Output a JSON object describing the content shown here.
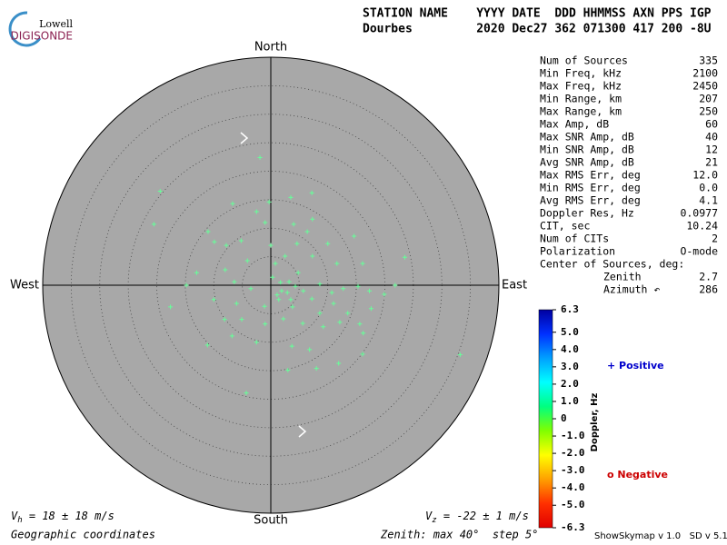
{
  "logo": {
    "top": "Lowell",
    "bottom": "DIGISONDE"
  },
  "header": {
    "line1": "STATION NAME    YYYY DATE  DDD HHMMSS AXN PPS IGP",
    "line2": "Dourbes         2020 Dec27 362 071300 417 200 -8U"
  },
  "stats": [
    {
      "label": "Num of Sources",
      "value": "335"
    },
    {
      "label": "Min Freq, kHz",
      "value": "2100"
    },
    {
      "label": "Max Freq, kHz",
      "value": "2450"
    },
    {
      "label": "Min Range, km",
      "value": "207"
    },
    {
      "label": "Max Range, km",
      "value": "250"
    },
    {
      "label": "Max Amp, dB",
      "value": "60"
    },
    {
      "label": "Max SNR Amp, dB",
      "value": "40"
    },
    {
      "label": "Min SNR Amp, dB",
      "value": "12"
    },
    {
      "label": "Avg SNR Amp, dB",
      "value": "21"
    },
    {
      "label": "Max RMS Err, deg",
      "value": "12.0"
    },
    {
      "label": "Min RMS Err, deg",
      "value": "0.0"
    },
    {
      "label": "Avg RMS Err, deg",
      "value": "4.1"
    },
    {
      "label": "Doppler Res, Hz",
      "value": "0.0977"
    },
    {
      "label": "CIT, sec",
      "value": "10.24"
    },
    {
      "label": "Num of CITs",
      "value": "2"
    },
    {
      "label": "Polarization",
      "value": "O-mode"
    }
  ],
  "center": {
    "title": "Center of Sources, deg:",
    "zenith_label": "Zenith",
    "zenith": "2.7",
    "azimuth_label": "Azimuth ↶",
    "azimuth": "286"
  },
  "colorbar": {
    "title": "Doppler, Hz",
    "lim": [
      -6.3,
      6.3
    ],
    "ticks": [
      6.3,
      {
        "value": 5,
        "label": "5.0"
      },
      {
        "value": 4,
        "label": "4.0"
      },
      {
        "value": 3,
        "label": "3.0"
      },
      {
        "value": 2,
        "label": "2.0"
      },
      {
        "value": 1,
        "label": "1.0"
      },
      0,
      {
        "value": -1,
        "label": "-1.0"
      },
      {
        "value": -2,
        "label": "-2.0"
      },
      {
        "value": -3,
        "label": "-3.0"
      },
      {
        "value": -4,
        "label": "-4.0"
      },
      {
        "value": -5,
        "label": "-5.0"
      },
      -6.3
    ],
    "colors": [
      "#0000a0",
      "#0030ff",
      "#00a0ff",
      "#00ffff",
      "#00ff80",
      "#80ff00",
      "#ffff00",
      "#ffa000",
      "#ff3000",
      "#e00000"
    ]
  },
  "legend": {
    "positive": "+ Positive",
    "positive_color": "#0000cc",
    "negative": "o Negative",
    "negative_color": "#cc0000"
  },
  "footer": {
    "vh_v": "V",
    "vh_sub": "h",
    "vh_text": " = 18 ± 18 m/s",
    "vz_v": "V",
    "vz_sub": "z",
    "vz_text": " = -22 ± 1 m/s",
    "coords": "Geographic coordinates",
    "zenith": "Zenith: max 40°  step 5°",
    "version": "ShowSkymap v 1.0   SD v 5.1"
  },
  "chart_data": {
    "type": "scatter",
    "north": "North",
    "south": "South",
    "east": "East",
    "west": "West",
    "rlim": [
      0,
      40
    ],
    "rticks": [
      5,
      10,
      15,
      20,
      25,
      30,
      35
    ],
    "color": "#66ff99",
    "x": [
      -1.9,
      -19.4,
      -20.5,
      -6.7,
      -0.3,
      3.5,
      7.2,
      7.3,
      -2.5,
      -1.0,
      4.0,
      6.4,
      -11.0,
      -9.9,
      -7.8,
      -5.2,
      0,
      4.6,
      10.0,
      14.6,
      23.5,
      16.1,
      11.6,
      7.3,
      2.5,
      0.8,
      -4.1,
      -8.0,
      -13.0,
      -14.8,
      -6.4,
      -3.5,
      0.3,
      1.7,
      2.9,
      4.3,
      5.7,
      7.2,
      8.6,
      10.7,
      12.7,
      15.3,
      17.3,
      19.9,
      21.8,
      -17.6,
      -10.0,
      -6.0,
      -1.1,
      1.4,
      3.8,
      8.6,
      11.0,
      13.5,
      15.6,
      17.6,
      -8.1,
      -5.1,
      -1.0,
      2.2,
      5.6,
      9.2,
      12.1,
      16.2,
      -11.1,
      -6.8,
      -2.5,
      3.7,
      6.8,
      11.9,
      16.1,
      3.0,
      8.0,
      -4.3,
      33.2,
      1.9,
      3.2,
      4.8,
      1.1,
      3.5
    ],
    "y": [
      22.4,
      16.5,
      10.7,
      14.3,
      14.6,
      15.4,
      16.2,
      11.6,
      12.9,
      11.0,
      10.7,
      9.4,
      9.4,
      7.6,
      7.0,
      7.8,
      7.0,
      7.3,
      7.3,
      8.6,
      4.9,
      3.8,
      3.8,
      5.1,
      5.1,
      3.8,
      4.3,
      2.7,
      2.2,
      0,
      0.6,
      -0.6,
      1.4,
      0.5,
      -1.3,
      -0.2,
      -1.0,
      -2.4,
      0.2,
      -1.3,
      -0.6,
      -0.2,
      -1.0,
      -1.6,
      0,
      -3.8,
      -2.5,
      -3.2,
      -3.7,
      -2.5,
      -3.8,
      -4.9,
      -3.2,
      -4.9,
      -6.8,
      -4.1,
      -6.0,
      -6.0,
      -6.8,
      -5.9,
      -6.7,
      -7.3,
      -6.5,
      -8.4,
      -10.5,
      -8.9,
      -10.0,
      -10.7,
      -11.3,
      -13.7,
      -12.1,
      -14.9,
      -14.6,
      -18.9,
      -12.2,
      -1.0,
      0.6,
      2.2,
      -1.7,
      -2.5
    ]
  }
}
